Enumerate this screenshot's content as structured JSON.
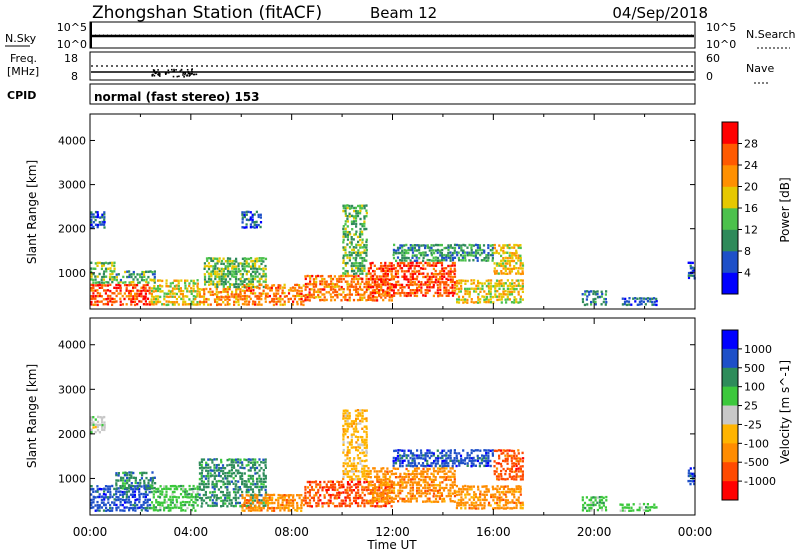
{
  "header": {
    "station": "Zhongshan Station (fitACF)",
    "beam": "Beam 12",
    "date": "04/Sep/2018"
  },
  "nsky_panel": {
    "left_label": "N.Sky",
    "right_label": "N.Search",
    "left_ticks": [
      "10^5",
      "10^0"
    ],
    "right_ticks": [
      "10^5",
      "10^0"
    ]
  },
  "freq_panel": {
    "left_label_1": "Freq.",
    "left_label_2": "[MHz]",
    "right_label": "Nave",
    "left_ticks": [
      "18",
      "8"
    ],
    "right_ticks": [
      "60",
      "0"
    ]
  },
  "cpid": {
    "label": "CPID",
    "text": "normal (fast stereo) 153"
  },
  "colors": {
    "power_scale": [
      "#0000ff",
      "#1e50c8",
      "#2f8a5a",
      "#4cc14c",
      "#e6c800",
      "#ff9000",
      "#ff5a00",
      "#ff0000"
    ],
    "velocity_scale": [
      "#ff0000",
      "#ff4a00",
      "#ff8c00",
      "#ffb400",
      "#c8c8c8",
      "#3cc83c",
      "#2e8c5a",
      "#1e50c8",
      "#0000ff"
    ]
  },
  "chart_data": [
    {
      "type": "heatmap",
      "name": "power",
      "ylabel": "Slant Range [km]",
      "ylim": [
        180,
        4600
      ],
      "y_ticks": [
        1000,
        2000,
        3000,
        4000
      ],
      "xlim": [
        0,
        24
      ],
      "colorbar": {
        "label": "Power [dB]",
        "ticks": [
          4,
          8,
          12,
          16,
          20,
          24,
          28
        ],
        "range": [
          0,
          32
        ]
      },
      "regions": [
        {
          "t0": 0.0,
          "t1": 2.4,
          "r0": 300,
          "r1": 800,
          "v": 27
        },
        {
          "t0": 0.0,
          "t1": 1.0,
          "r0": 800,
          "r1": 1300,
          "v": 14
        },
        {
          "t0": 0.0,
          "t1": 0.6,
          "r0": 2050,
          "r1": 2450,
          "v": 7
        },
        {
          "t0": 1.0,
          "t1": 2.6,
          "r0": 800,
          "r1": 1100,
          "v": 12
        },
        {
          "t0": 2.4,
          "t1": 4.3,
          "r0": 300,
          "r1": 900,
          "v": 18
        },
        {
          "t0": 4.3,
          "t1": 6.0,
          "r0": 300,
          "r1": 700,
          "v": 22
        },
        {
          "t0": 4.5,
          "t1": 7.0,
          "r0": 700,
          "r1": 1400,
          "v": 14
        },
        {
          "t0": 6.0,
          "t1": 8.5,
          "r0": 300,
          "r1": 800,
          "v": 24
        },
        {
          "t0": 6.0,
          "t1": 6.8,
          "r0": 2050,
          "r1": 2450,
          "v": 7
        },
        {
          "t0": 8.5,
          "t1": 12.0,
          "r0": 400,
          "r1": 1000,
          "v": 24
        },
        {
          "t0": 10.0,
          "t1": 11.0,
          "r0": 1000,
          "r1": 2600,
          "v": 13
        },
        {
          "t0": 11.0,
          "t1": 14.5,
          "r0": 500,
          "r1": 1300,
          "v": 27
        },
        {
          "t0": 12.0,
          "t1": 16.0,
          "r0": 1300,
          "r1": 1700,
          "v": 11
        },
        {
          "t0": 14.5,
          "t1": 17.2,
          "r0": 350,
          "r1": 900,
          "v": 18
        },
        {
          "t0": 16.0,
          "t1": 17.2,
          "r0": 1000,
          "r1": 1700,
          "v": 19
        },
        {
          "t0": 19.5,
          "t1": 20.5,
          "r0": 300,
          "r1": 650,
          "v": 9
        },
        {
          "t0": 21.0,
          "t1": 22.5,
          "r0": 300,
          "r1": 500,
          "v": 7
        },
        {
          "t0": 23.7,
          "t1": 24.0,
          "r0": 900,
          "r1": 1300,
          "v": 6
        }
      ]
    },
    {
      "type": "heatmap",
      "name": "velocity",
      "ylabel": "Slant Range [km]",
      "xlabel": "Time UT",
      "ylim": [
        180,
        4600
      ],
      "y_ticks": [
        1000,
        2000,
        3000,
        4000
      ],
      "xlim": [
        0,
        24
      ],
      "x_tick_labels": [
        "00:00",
        "04:00",
        "08:00",
        "12:00",
        "16:00",
        "20:00",
        "00:00"
      ],
      "x_ticks": [
        0,
        4,
        8,
        12,
        16,
        20,
        24
      ],
      "colorbar": {
        "label": "Velocity [m s^-1]",
        "ticks": [
          "1000",
          "500",
          "100",
          "25",
          "-25",
          "-100",
          "-500",
          "-1000"
        ]
      },
      "regions": [
        {
          "t0": 0.0,
          "t1": 2.4,
          "r0": 300,
          "r1": 900,
          "v": "#1e50c8"
        },
        {
          "t0": 0.0,
          "t1": 0.6,
          "r0": 2050,
          "r1": 2450,
          "v": "#c8c8c8"
        },
        {
          "t0": 1.0,
          "t1": 2.6,
          "r0": 800,
          "r1": 1200,
          "v": "#2e8c5a"
        },
        {
          "t0": 2.4,
          "t1": 4.3,
          "r0": 300,
          "r1": 900,
          "v": "#3cc83c"
        },
        {
          "t0": 4.3,
          "t1": 7.0,
          "r0": 400,
          "r1": 1500,
          "v": "#2e8c5a"
        },
        {
          "t0": 6.0,
          "t1": 8.5,
          "r0": 300,
          "r1": 700,
          "v": "#ff8c00"
        },
        {
          "t0": 8.5,
          "t1": 12.0,
          "r0": 400,
          "r1": 1000,
          "v": "#ff4a00"
        },
        {
          "t0": 10.0,
          "t1": 11.0,
          "r0": 1000,
          "r1": 2600,
          "v": "#ffb400"
        },
        {
          "t0": 11.0,
          "t1": 14.5,
          "r0": 500,
          "r1": 1300,
          "v": "#ff8c00"
        },
        {
          "t0": 12.0,
          "t1": 16.0,
          "r0": 1300,
          "r1": 1700,
          "v": "#1e50c8"
        },
        {
          "t0": 14.5,
          "t1": 17.2,
          "r0": 350,
          "r1": 900,
          "v": "#ff8c00"
        },
        {
          "t0": 16.0,
          "t1": 17.2,
          "r0": 1000,
          "r1": 1700,
          "v": "#ff4a00"
        },
        {
          "t0": 19.5,
          "t1": 20.5,
          "r0": 300,
          "r1": 650,
          "v": "#3cc83c"
        },
        {
          "t0": 21.0,
          "t1": 22.5,
          "r0": 300,
          "r1": 500,
          "v": "#3cc83c"
        },
        {
          "t0": 23.7,
          "t1": 24.0,
          "r0": 900,
          "r1": 1300,
          "v": "#1e50c8"
        }
      ]
    }
  ]
}
